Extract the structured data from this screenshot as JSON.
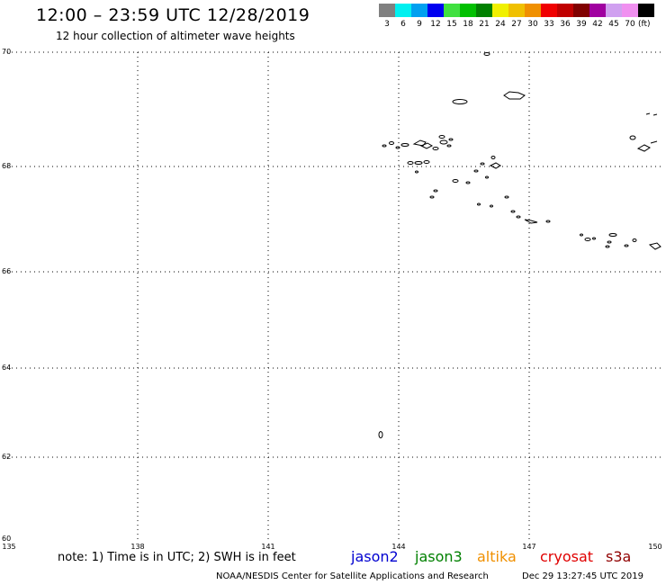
{
  "header": {
    "title": "12:00 – 23:59 UTC 12/28/2019",
    "subtitle": "12 hour collection of altimeter wave heights"
  },
  "legend": {
    "swatches": [
      {
        "color": "#808080",
        "label": "3"
      },
      {
        "color": "#00f0f0",
        "label": "6"
      },
      {
        "color": "#00a0f0",
        "label": "9"
      },
      {
        "color": "#0000f0",
        "label": "12"
      },
      {
        "color": "#40e040",
        "label": "15"
      },
      {
        "color": "#00c000",
        "label": "18"
      },
      {
        "color": "#008000",
        "label": "21"
      },
      {
        "color": "#f0f000",
        "label": "24"
      },
      {
        "color": "#f0c000",
        "label": "27"
      },
      {
        "color": "#f09000",
        "label": "30"
      },
      {
        "color": "#f00000",
        "label": "33"
      },
      {
        "color": "#c00000",
        "label": "36"
      },
      {
        "color": "#800000",
        "label": "39"
      },
      {
        "color": "#a000a0",
        "label": "42"
      },
      {
        "color": "#d0a0f0",
        "label": "45"
      },
      {
        "color": "#f090f0",
        "label": "70"
      },
      {
        "color": "#000000",
        "label": "(ft)"
      }
    ]
  },
  "map": {
    "lat_labels": [
      "70",
      "68",
      "66",
      "64",
      "62",
      "60"
    ],
    "lon_labels": [
      "135",
      "138",
      "141",
      "144",
      "147",
      "150"
    ],
    "lat_range": [
      60,
      70
    ],
    "lon_range": [
      135,
      150
    ],
    "grid": "dotted"
  },
  "footer": {
    "note": "note:  1) Time is in UTC; 2) SWH is in feet",
    "satellites": [
      {
        "name": "jason2",
        "color": "#0000d0"
      },
      {
        "name": "jason3",
        "color": "#008000"
      },
      {
        "name": "altika",
        "color": "#f09000"
      },
      {
        "name": "cryosat",
        "color": "#e00000"
      },
      {
        "name": "s3a",
        "color": "#900000"
      }
    ],
    "credit": "NOAA/NESDIS Center for Satellite Applications and Research",
    "timestamp": "Dec 29 13:27:45 UTC 2019"
  }
}
